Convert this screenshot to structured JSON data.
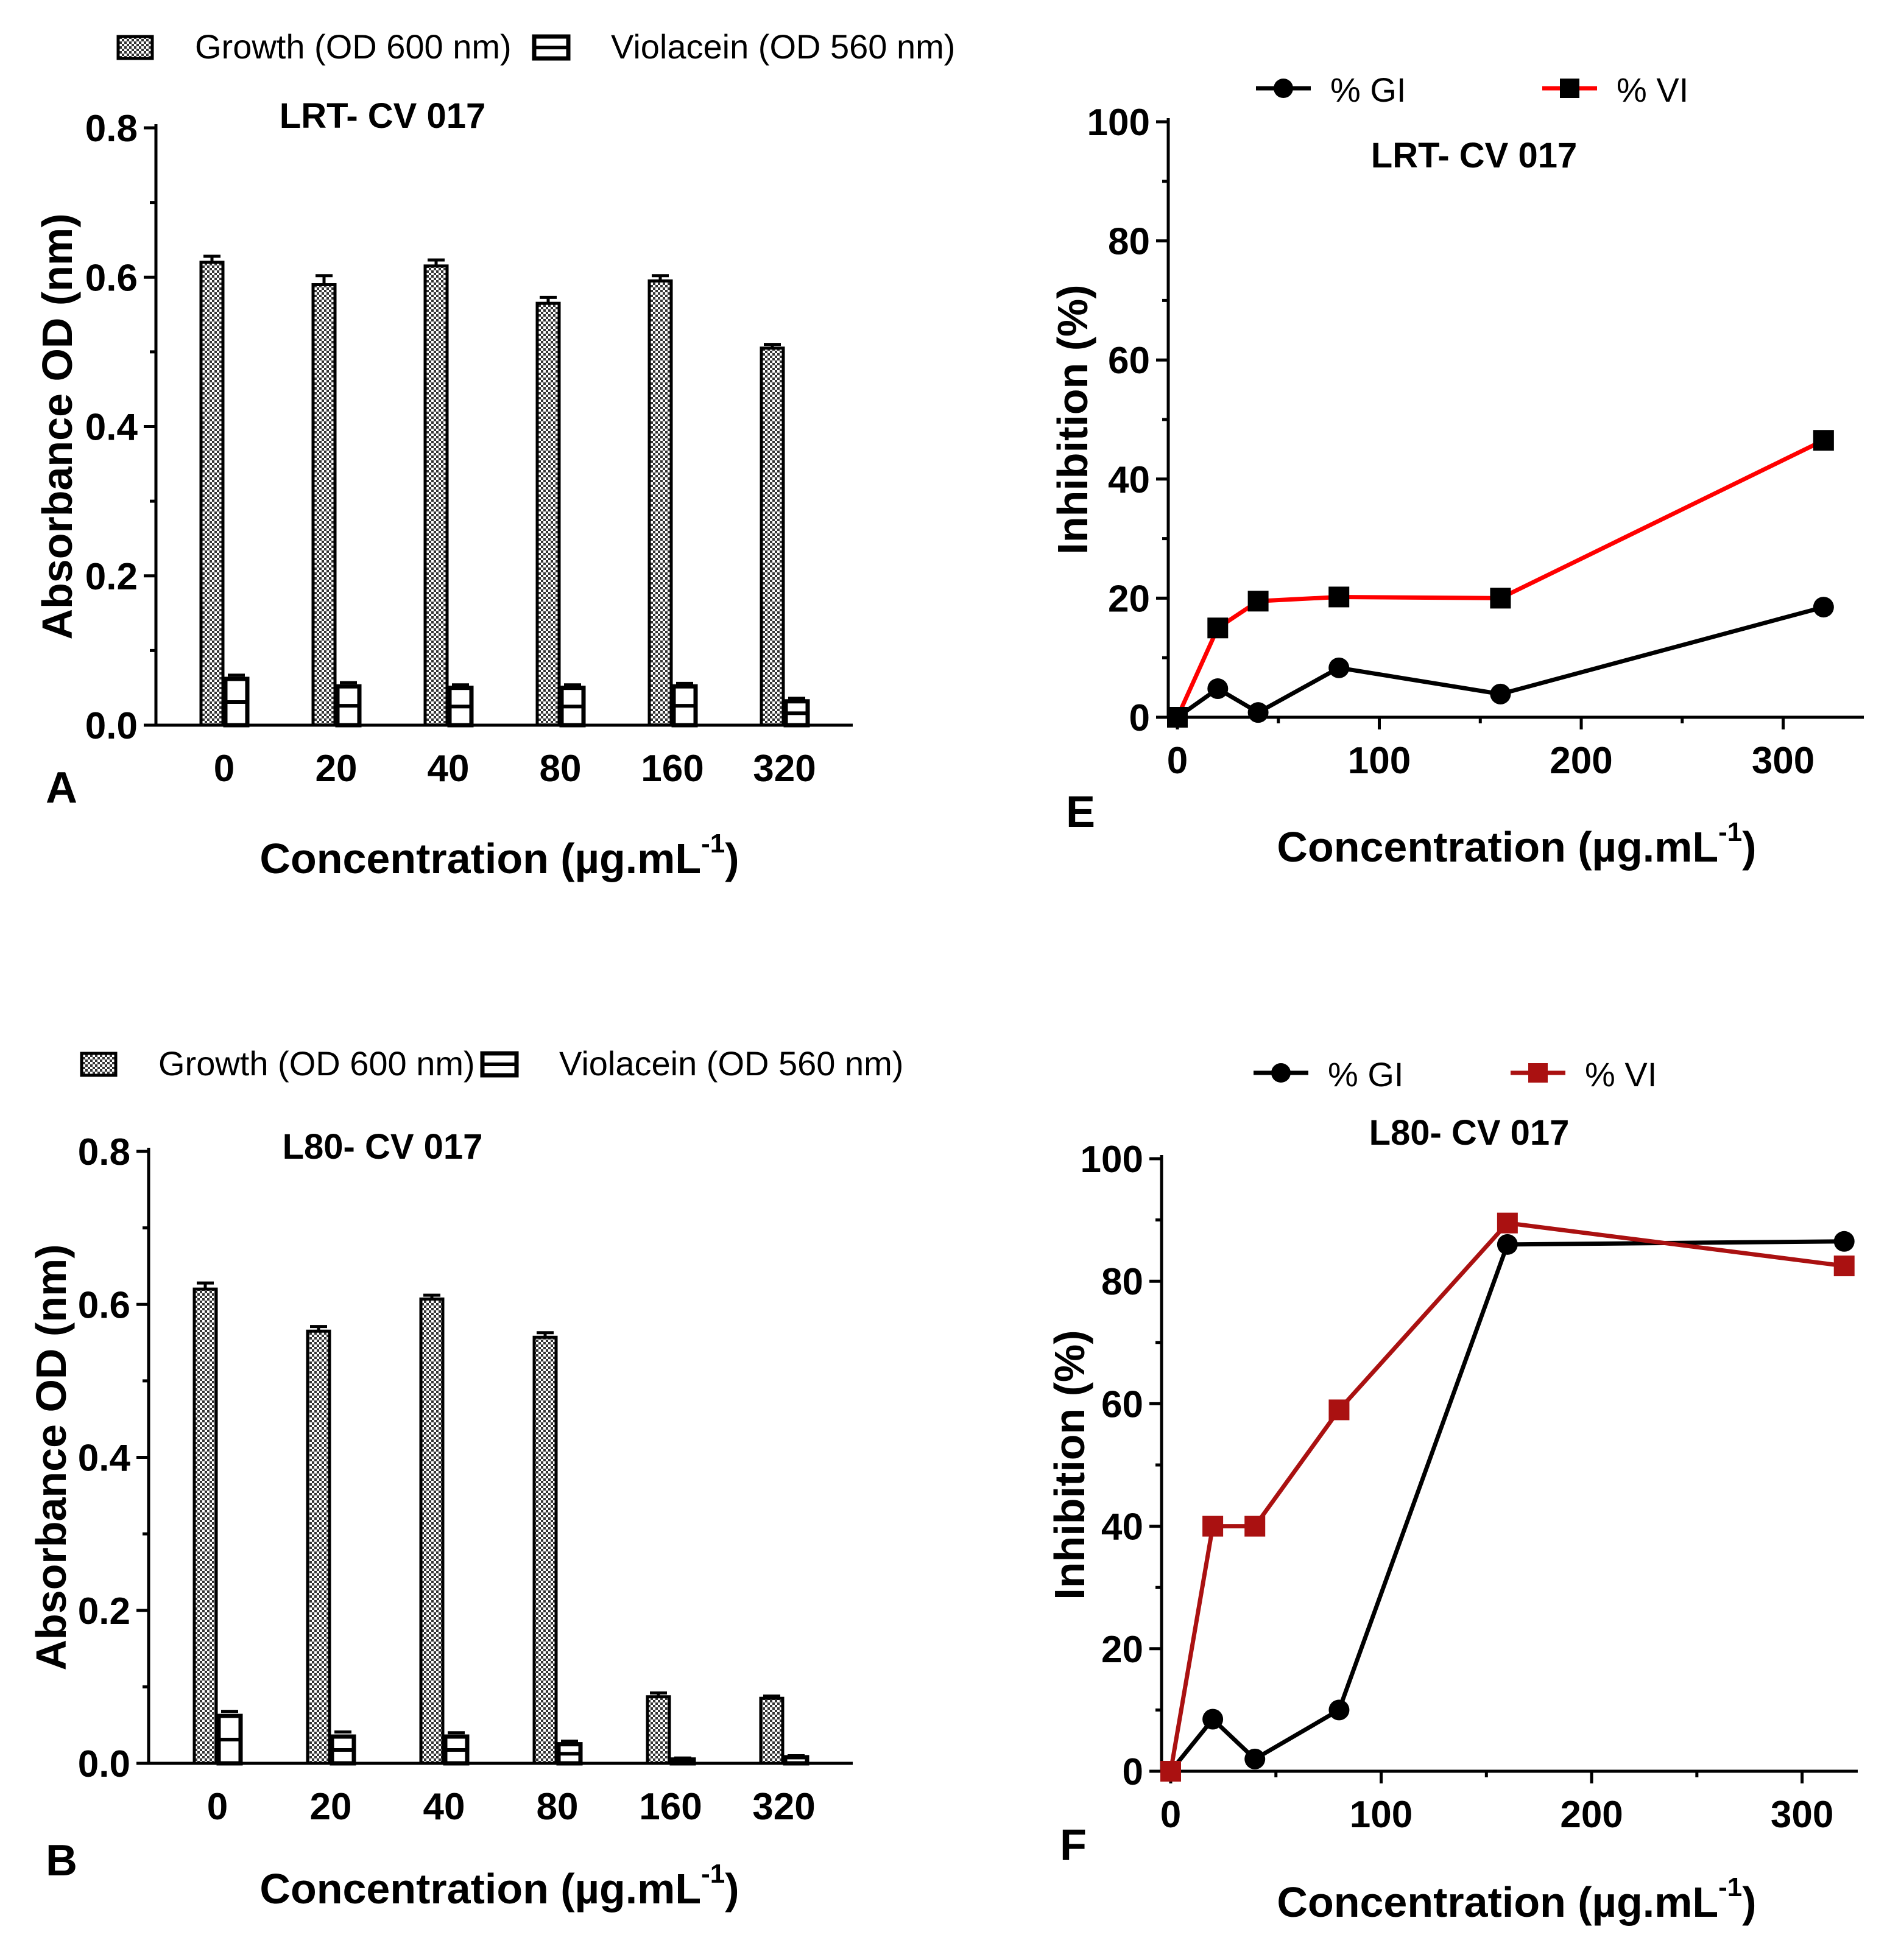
{
  "chart_data": [
    {
      "panel": "A",
      "type": "bar",
      "title": "LRT- CV 017",
      "xlabel": "Concentration (µg.mL",
      "xlabel_sup": "-1",
      "xlabel_end": ")",
      "ylabel": "Absorbance OD (nm)",
      "ylim": [
        0,
        0.8
      ],
      "yticks": [
        "0.0",
        "0.2",
        "0.4",
        "0.6",
        "0.8"
      ],
      "categories": [
        "0",
        "20",
        "40",
        "80",
        "160",
        "320"
      ],
      "series": [
        {
          "name": "Growth (OD 600 nm)",
          "values": [
            0.62,
            0.59,
            0.615,
            0.565,
            0.595,
            0.505
          ],
          "errors": [
            0.008,
            0.012,
            0.008,
            0.008,
            0.007,
            0.005
          ]
        },
        {
          "name": "Violacein (OD 560 nm)",
          "values": [
            0.062,
            0.052,
            0.05,
            0.05,
            0.052,
            0.032
          ],
          "errors": [
            0.005,
            0.005,
            0.004,
            0.004,
            0.004,
            0.004
          ]
        }
      ]
    },
    {
      "panel": "B",
      "type": "bar",
      "title": "L80- CV 017",
      "xlabel": "Concentration (µg.mL",
      "xlabel_sup": "-1",
      "xlabel_end": ")",
      "ylabel": "Absorbance OD (nm)",
      "ylim": [
        0,
        0.8
      ],
      "yticks": [
        "0.0",
        "0.2",
        "0.4",
        "0.6",
        "0.8"
      ],
      "categories": [
        "0",
        "20",
        "40",
        "80",
        "160",
        "320"
      ],
      "series": [
        {
          "name": "Growth (OD 600 nm)",
          "values": [
            0.62,
            0.565,
            0.607,
            0.557,
            0.087,
            0.085
          ],
          "errors": [
            0.008,
            0.006,
            0.005,
            0.006,
            0.005,
            0.003
          ]
        },
        {
          "name": "Violacein (OD 560 nm)",
          "values": [
            0.062,
            0.035,
            0.035,
            0.025,
            0.005,
            0.008
          ],
          "errors": [
            0.006,
            0.006,
            0.005,
            0.004,
            0.002,
            0.002
          ]
        }
      ]
    },
    {
      "panel": "E",
      "type": "line",
      "title": "LRT- CV 017",
      "xlabel": "Concentration (µg.mL",
      "xlabel_sup": "-1",
      "xlabel_end": ")",
      "ylabel": "Inhibition (%)",
      "xlim": [
        0,
        330
      ],
      "ylim": [
        0,
        100
      ],
      "xticks": [
        0,
        100,
        200,
        300
      ],
      "yticks": [
        0,
        20,
        40,
        60,
        80,
        100
      ],
      "x": [
        0,
        20,
        40,
        80,
        160,
        320
      ],
      "series": [
        {
          "name": "% GI",
          "marker": "circle",
          "color": "#000000",
          "values": [
            0,
            4.8,
            0.8,
            8.3,
            3.9,
            18.5
          ]
        },
        {
          "name": "% VI",
          "marker": "square",
          "color": "#ff0000",
          "values": [
            0,
            15,
            19.5,
            20.2,
            20,
            46.5
          ]
        }
      ]
    },
    {
      "panel": "F",
      "type": "line",
      "title": "L80- CV 017",
      "xlabel": "Concentration (µg.mL",
      "xlabel_sup": "-1",
      "xlabel_end": ")",
      "ylabel": "Inhibition (%)",
      "xlim": [
        0,
        325
      ],
      "ylim": [
        0,
        100
      ],
      "xticks": [
        0,
        100,
        200,
        300
      ],
      "yticks": [
        0,
        20,
        40,
        60,
        80,
        100
      ],
      "x": [
        0,
        20,
        40,
        80,
        160,
        320
      ],
      "series": [
        {
          "name": "% GI",
          "marker": "circle",
          "color": "#000000",
          "values": [
            0,
            8.5,
            2,
            10,
            86,
            86.5
          ]
        },
        {
          "name": "% VI",
          "marker": "square",
          "color": "#aa1111",
          "values": [
            0,
            40,
            40,
            59,
            89.5,
            82.5
          ]
        }
      ]
    }
  ]
}
